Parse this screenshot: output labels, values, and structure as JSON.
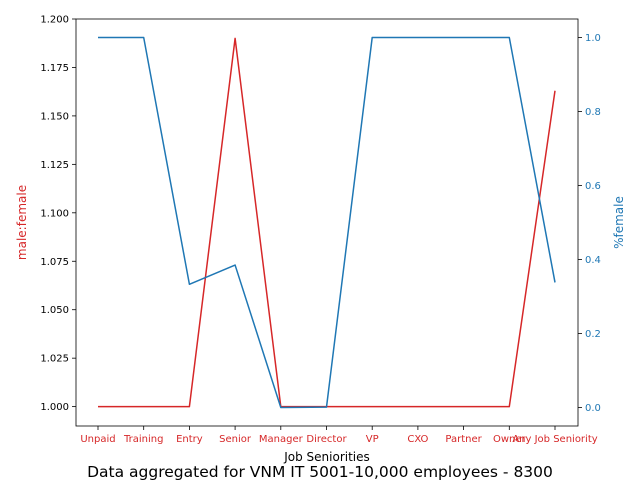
{
  "chart_data": {
    "type": "line",
    "title": "Data aggregated for VNM IT 5001-10,000 employees - 8300",
    "xlabel": "Job Seniorities",
    "ylabel_left": "male:female",
    "ylabel_right": "%female",
    "categories": [
      "Unpaid",
      "Training",
      "Entry",
      "Senior",
      "Manager",
      "Director",
      "VP",
      "CXO",
      "Partner",
      "Owner",
      "Any Job Seniority"
    ],
    "left_axis": {
      "ylim": [
        0.99,
        1.2
      ],
      "ticks": [
        "1.000",
        "1.025",
        "1.050",
        "1.075",
        "1.100",
        "1.125",
        "1.150",
        "1.175",
        "1.200"
      ]
    },
    "right_axis": {
      "ylim": [
        -0.05,
        1.05
      ],
      "ticks": [
        "0.0",
        "0.2",
        "0.4",
        "0.6",
        "0.8",
        "1.0"
      ]
    },
    "series": [
      {
        "axis": "left",
        "color": "#d62728",
        "values": [
          1.0,
          1.0,
          1.0,
          1.19,
          1.0,
          1.0,
          1.0,
          1.0,
          1.0,
          1.0,
          1.163
        ]
      },
      {
        "axis": "right",
        "color": "#1f77b4",
        "values": [
          1.0,
          1.0,
          0.333,
          0.385,
          0.0,
          0.001,
          1.0,
          1.0,
          1.0,
          1.0,
          0.338
        ]
      }
    ],
    "grid": false,
    "legend": "none"
  }
}
